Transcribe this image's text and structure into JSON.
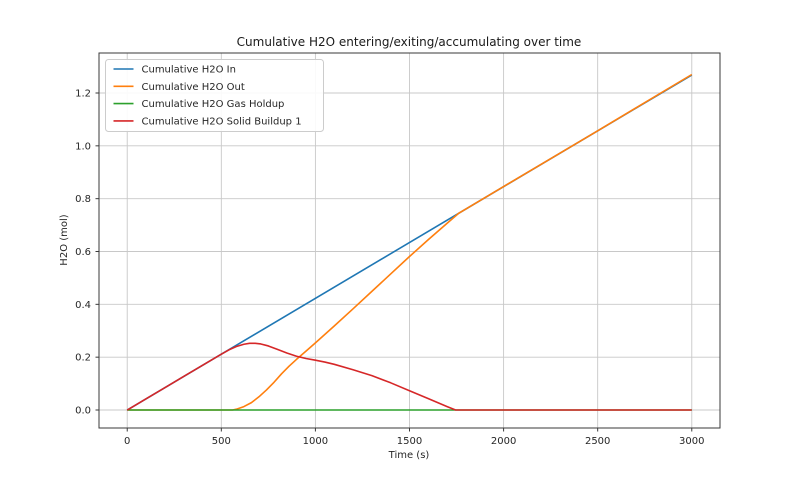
{
  "figure": {
    "background": "#ffffff",
    "grid_color": "#c8c8c8",
    "spine_color": "#3a3a3a",
    "legend_border_color": "#cccccc",
    "legend_background": "#ffffff"
  },
  "chart_data": {
    "type": "line",
    "title": "Cumulative H2O entering/exiting/accumulating over time",
    "xlabel": "Time (s)",
    "ylabel": "H2O (mol)",
    "xlim": [
      -150,
      3150
    ],
    "ylim": [
      -0.0681,
      1.3514
    ],
    "xticks": [
      0,
      500,
      1000,
      1500,
      2000,
      2500,
      3000
    ],
    "xtick_labels": [
      "0",
      "500",
      "1000",
      "1500",
      "2000",
      "2500",
      "3000"
    ],
    "yticks": [
      0.0,
      0.2,
      0.4,
      0.6,
      0.8,
      1.0,
      1.2
    ],
    "ytick_labels": [
      "0.0",
      "0.2",
      "0.4",
      "0.6",
      "0.8",
      "1.0",
      "1.2"
    ],
    "grid": true,
    "legend_position": "upper left",
    "series": [
      {
        "name": "Cumulative H2O In",
        "color": "#1f77b4",
        "points": [
          [
            0,
            0
          ],
          [
            3000,
            1.268
          ]
        ]
      },
      {
        "name": "Cumulative H2O Out",
        "color": "#ff7f0e",
        "points": [
          [
            0,
            0
          ],
          [
            560,
            0
          ],
          [
            580,
            0.003
          ],
          [
            620,
            0.013
          ],
          [
            660,
            0.028
          ],
          [
            700,
            0.05
          ],
          [
            740,
            0.076
          ],
          [
            780,
            0.105
          ],
          [
            820,
            0.137
          ],
          [
            860,
            0.166
          ],
          [
            900,
            0.192
          ],
          [
            950,
            0.223
          ],
          [
            1000,
            0.254
          ],
          [
            1100,
            0.318
          ],
          [
            1200,
            0.383
          ],
          [
            1300,
            0.449
          ],
          [
            1400,
            0.515
          ],
          [
            1500,
            0.581
          ],
          [
            1600,
            0.645
          ],
          [
            1700,
            0.707
          ],
          [
            1760,
            0.744
          ],
          [
            2000,
            0.846
          ],
          [
            2500,
            1.057
          ],
          [
            3000,
            1.27
          ]
        ]
      },
      {
        "name": "Cumulative H2O Gas Holdup",
        "color": "#2ca02c",
        "points": [
          [
            0,
            0
          ],
          [
            3000,
            0
          ]
        ]
      },
      {
        "name": "Cumulative H2O Solid Buildup 1",
        "color": "#d62728",
        "points": [
          [
            0,
            0
          ],
          [
            100,
            0.0423
          ],
          [
            200,
            0.0846
          ],
          [
            300,
            0.1269
          ],
          [
            400,
            0.1692
          ],
          [
            500,
            0.2115
          ],
          [
            540,
            0.2275
          ],
          [
            580,
            0.2405
          ],
          [
            620,
            0.249
          ],
          [
            650,
            0.2525
          ],
          [
            680,
            0.2525
          ],
          [
            710,
            0.25
          ],
          [
            750,
            0.2425
          ],
          [
            800,
            0.229
          ],
          [
            850,
            0.2155
          ],
          [
            900,
            0.2035
          ],
          [
            950,
            0.195
          ],
          [
            1000,
            0.1885
          ],
          [
            1050,
            0.1815
          ],
          [
            1100,
            0.173
          ],
          [
            1200,
            0.1525
          ],
          [
            1300,
            0.13
          ],
          [
            1400,
            0.103
          ],
          [
            1500,
            0.073
          ],
          [
            1600,
            0.043
          ],
          [
            1700,
            0.013
          ],
          [
            1745,
            0
          ],
          [
            3000,
            0
          ]
        ]
      }
    ]
  }
}
